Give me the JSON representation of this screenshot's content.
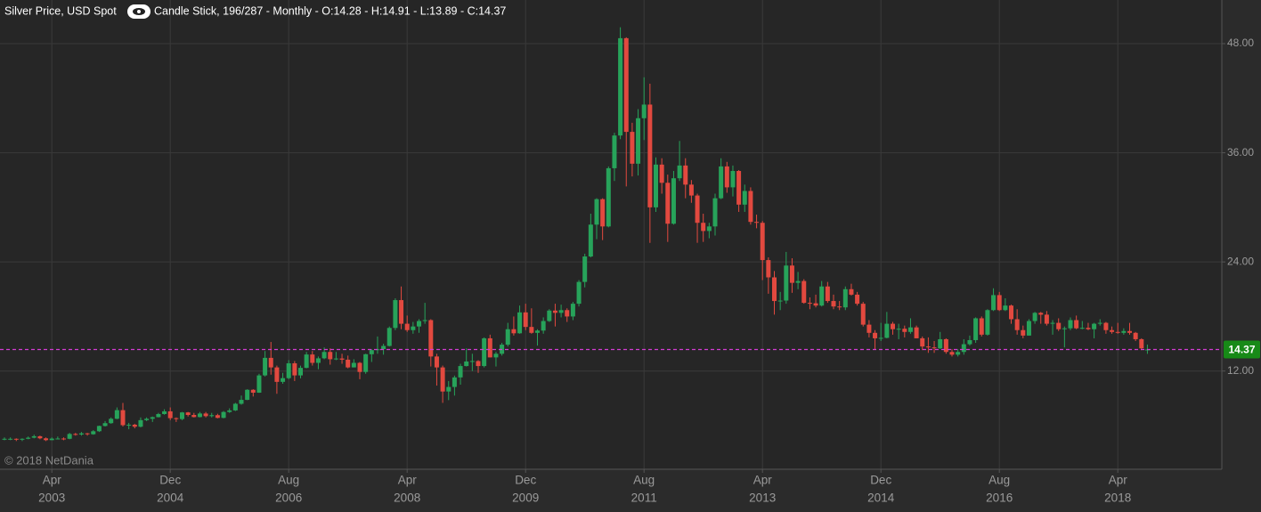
{
  "chart_data": {
    "type": "candlestick",
    "title": "Silver Price, USD Spot",
    "subtitle": "Candle Stick, 196/287 - Monthly - O:14.28 - H:14.91 - L:13.89 - C:14.37",
    "watermark": "© 2018 NetDania",
    "up_color": "#27a35a",
    "down_color": "#e2493f",
    "price_line_color": "#d33cd3",
    "price_label_color": "#178a17",
    "grid": true,
    "ylim": [
      1.2,
      52.8
    ],
    "yticks": [
      {
        "value": 12,
        "label": "12.00"
      },
      {
        "value": 24,
        "label": "24.00"
      },
      {
        "value": 36,
        "label": "36.00"
      },
      {
        "value": 48,
        "label": "48.00"
      }
    ],
    "xticks": [
      {
        "value": "2003-04",
        "label": [
          "Apr",
          "2003"
        ]
      },
      {
        "value": "2004-12",
        "label": [
          "Dec",
          "2004"
        ]
      },
      {
        "value": "2006-08",
        "label": [
          "Aug",
          "2006"
        ]
      },
      {
        "value": "2008-04",
        "label": [
          "Apr",
          "2008"
        ]
      },
      {
        "value": "2009-12",
        "label": [
          "Dec",
          "2009"
        ]
      },
      {
        "value": "2011-08",
        "label": [
          "Aug",
          "2011"
        ]
      },
      {
        "value": "2013-04",
        "label": [
          "Apr",
          "2013"
        ]
      },
      {
        "value": "2014-12",
        "label": [
          "Dec",
          "2014"
        ]
      },
      {
        "value": "2016-08",
        "label": [
          "Aug",
          "2016"
        ]
      },
      {
        "value": "2018-04",
        "label": [
          "Apr",
          "2018"
        ]
      }
    ],
    "x": [
      "2002-08",
      "2002-09",
      "2002-10",
      "2002-11",
      "2002-12",
      "2003-01",
      "2003-02",
      "2003-03",
      "2003-04",
      "2003-05",
      "2003-06",
      "2003-07",
      "2003-08",
      "2003-09",
      "2003-10",
      "2003-11",
      "2003-12",
      "2004-01",
      "2004-02",
      "2004-03",
      "2004-04",
      "2004-05",
      "2004-06",
      "2004-07",
      "2004-08",
      "2004-09",
      "2004-10",
      "2004-11",
      "2004-12",
      "2005-01",
      "2005-02",
      "2005-03",
      "2005-04",
      "2005-05",
      "2005-06",
      "2005-07",
      "2005-08",
      "2005-09",
      "2005-10",
      "2005-11",
      "2005-12",
      "2006-01",
      "2006-02",
      "2006-03",
      "2006-04",
      "2006-05",
      "2006-06",
      "2006-07",
      "2006-08",
      "2006-09",
      "2006-10",
      "2006-11",
      "2006-12",
      "2007-01",
      "2007-02",
      "2007-03",
      "2007-04",
      "2007-05",
      "2007-06",
      "2007-07",
      "2007-08",
      "2007-09",
      "2007-10",
      "2007-11",
      "2007-12",
      "2008-01",
      "2008-02",
      "2008-03",
      "2008-04",
      "2008-05",
      "2008-06",
      "2008-07",
      "2008-08",
      "2008-09",
      "2008-10",
      "2008-11",
      "2008-12",
      "2009-01",
      "2009-02",
      "2009-03",
      "2009-04",
      "2009-05",
      "2009-06",
      "2009-07",
      "2009-08",
      "2009-09",
      "2009-10",
      "2009-11",
      "2009-12",
      "2010-01",
      "2010-02",
      "2010-03",
      "2010-04",
      "2010-05",
      "2010-06",
      "2010-07",
      "2010-08",
      "2010-09",
      "2010-10",
      "2010-11",
      "2010-12",
      "2011-01",
      "2011-02",
      "2011-03",
      "2011-04",
      "2011-05",
      "2011-06",
      "2011-07",
      "2011-08",
      "2011-09",
      "2011-10",
      "2011-11",
      "2011-12",
      "2012-01",
      "2012-02",
      "2012-03",
      "2012-04",
      "2012-05",
      "2012-06",
      "2012-07",
      "2012-08",
      "2012-09",
      "2012-10",
      "2012-11",
      "2012-12",
      "2013-01",
      "2013-02",
      "2013-03",
      "2013-04",
      "2013-05",
      "2013-06",
      "2013-07",
      "2013-08",
      "2013-09",
      "2013-10",
      "2013-11",
      "2013-12",
      "2014-01",
      "2014-02",
      "2014-03",
      "2014-04",
      "2014-05",
      "2014-06",
      "2014-07",
      "2014-08",
      "2014-09",
      "2014-10",
      "2014-11",
      "2014-12",
      "2015-01",
      "2015-02",
      "2015-03",
      "2015-04",
      "2015-05",
      "2015-06",
      "2015-07",
      "2015-08",
      "2015-09",
      "2015-10",
      "2015-11",
      "2015-12",
      "2016-01",
      "2016-02",
      "2016-03",
      "2016-04",
      "2016-05",
      "2016-06",
      "2016-07",
      "2016-08",
      "2016-09",
      "2016-10",
      "2016-11",
      "2016-12",
      "2017-01",
      "2017-02",
      "2017-03",
      "2017-04",
      "2017-05",
      "2017-06",
      "2017-07",
      "2017-08",
      "2017-09",
      "2017-10",
      "2017-11",
      "2017-12",
      "2018-01",
      "2018-02",
      "2018-03",
      "2018-04",
      "2018-05",
      "2018-06",
      "2018-07",
      "2018-08",
      "2018-09"
    ],
    "open": [
      4.5,
      4.55,
      4.55,
      4.45,
      4.55,
      4.67,
      4.83,
      4.6,
      4.4,
      4.57,
      4.58,
      4.55,
      5.08,
      5.02,
      5.15,
      5.05,
      5.38,
      5.96,
      6.27,
      6.75,
      7.7,
      6.05,
      6.1,
      5.88,
      6.6,
      6.75,
      6.93,
      7.27,
      7.57,
      6.82,
      6.72,
      7.45,
      7.17,
      6.94,
      7.33,
      7.04,
      7.15,
      6.85,
      7.5,
      7.67,
      8.4,
      8.83,
      9.94,
      9.62,
      11.52,
      13.45,
      12.4,
      10.81,
      11.22,
      12.85,
      11.52,
      12.35,
      13.82,
      12.9,
      13.4,
      14.1,
      13.3,
      13.38,
      13.25,
      12.4,
      12.9,
      11.9,
      13.85,
      14.3,
      14.4,
      14.76,
      16.74,
      19.8,
      17.2,
      16.5,
      16.9,
      17.5,
      17.6,
      13.6,
      12.4,
      9.75,
      10.25,
      11.3,
      12.55,
      13.05,
      13.1,
      12.55,
      15.6,
      13.5,
      13.9,
      14.9,
      16.6,
      16.15,
      18.45,
      16.85,
      16.2,
      16.45,
      17.5,
      18.65,
      18.4,
      18.7,
      18.0,
      19.4,
      21.8,
      24.6,
      28.1,
      30.9,
      27.9,
      34.3,
      37.9,
      48.6,
      38.3,
      34.8,
      39.8,
      41.3,
      30.0,
      34.7,
      32.7,
      28.2,
      33.2,
      34.6,
      32.5,
      31.3,
      28.3,
      27.4,
      27.9,
      31.0,
      34.5,
      32.2,
      34.0,
      30.3,
      31.8,
      28.4,
      28.3,
      24.2,
      22.3,
      19.7,
      19.75,
      23.6,
      21.7,
      21.9,
      19.5,
      19.45,
      19.2,
      21.3,
      19.7,
      19.1,
      19.0,
      21.0,
      20.4,
      19.4,
      17.1,
      16.2,
      15.6,
      15.65,
      17.2,
      16.6,
      16.65,
      16.3,
      16.8,
      15.6,
      14.7,
      14.6,
      14.5,
      15.5,
      14.1,
      13.8,
      14.1,
      14.95,
      15.4,
      17.8,
      16.0,
      18.7,
      20.35,
      18.7,
      19.2,
      17.7,
      16.5,
      15.9,
      17.5,
      18.4,
      18.2,
      17.2,
      17.3,
      16.6,
      16.7,
      17.6,
      16.7,
      16.75,
      16.6,
      17.2,
      17.3,
      16.5,
      16.3,
      16.2,
      16.4,
      16.2,
      15.5,
      14.28
    ],
    "high": [
      4.7,
      4.7,
      4.6,
      4.6,
      4.8,
      5.0,
      4.9,
      4.7,
      4.7,
      4.8,
      4.7,
      5.2,
      5.2,
      5.3,
      5.2,
      5.5,
      6.0,
      6.5,
      6.9,
      8.0,
      8.5,
      6.3,
      6.2,
      6.9,
      6.9,
      7.0,
      7.4,
      7.8,
      8.0,
      6.9,
      7.5,
      7.5,
      7.4,
      7.5,
      7.5,
      7.4,
      7.3,
      7.6,
      7.9,
      8.5,
      9.3,
      10.0,
      10.0,
      11.7,
      14.2,
      15.2,
      12.6,
      11.8,
      13.2,
      13.1,
      12.6,
      14.1,
      14.2,
      13.6,
      14.6,
      14.5,
      14.1,
      13.9,
      13.7,
      13.3,
      13.0,
      13.9,
      14.4,
      15.8,
      15.0,
      16.9,
      20.0,
      21.3,
      18.1,
      17.4,
      17.7,
      19.5,
      17.7,
      13.9,
      12.6,
      10.9,
      11.5,
      12.8,
      14.5,
      13.9,
      13.2,
      15.7,
      16.0,
      14.1,
      15.1,
      17.3,
      18.0,
      19.2,
      19.4,
      18.9,
      16.6,
      17.9,
      18.8,
      19.4,
      19.3,
      18.9,
      19.6,
      22.0,
      24.9,
      29.3,
      31.0,
      31.0,
      34.5,
      38.2,
      49.8,
      48.7,
      39.3,
      40.8,
      44.3,
      43.6,
      35.5,
      35.4,
      33.6,
      34.0,
      37.3,
      35.4,
      33.0,
      31.5,
      29.3,
      28.3,
      31.5,
      35.4,
      35.0,
      34.6,
      34.1,
      32.5,
      32.2,
      29.2,
      28.5,
      24.5,
      23.0,
      20.7,
      25.1,
      24.4,
      22.9,
      22.1,
      20.1,
      20.4,
      21.9,
      21.8,
      20.4,
      19.7,
      21.3,
      21.6,
      20.7,
      19.6,
      17.6,
      16.5,
      17.3,
      18.5,
      17.4,
      17.2,
      17.0,
      17.8,
      17.0,
      15.8,
      15.7,
      15.3,
      16.3,
      15.6,
      14.4,
      14.4,
      15.5,
      15.9,
      17.9,
      18.0,
      18.8,
      21.1,
      20.7,
      20.0,
      19.3,
      18.8,
      17.0,
      17.7,
      18.5,
      18.5,
      18.6,
      17.6,
      17.8,
      16.9,
      17.9,
      18.1,
      17.5,
      17.3,
      17.3,
      17.7,
      17.4,
      16.9,
      17.3,
      16.7,
      17.3,
      16.3,
      15.6,
      14.91
    ],
    "low": [
      4.4,
      4.4,
      4.3,
      4.3,
      4.5,
      4.6,
      4.5,
      4.3,
      4.4,
      4.5,
      4.4,
      4.5,
      4.9,
      4.9,
      4.9,
      5.0,
      5.3,
      5.9,
      6.2,
      6.7,
      5.9,
      5.6,
      5.7,
      5.8,
      6.5,
      6.4,
      6.9,
      7.2,
      6.6,
      6.4,
      6.6,
      7.0,
      6.9,
      6.9,
      6.9,
      6.9,
      6.8,
      6.8,
      7.4,
      7.6,
      8.3,
      8.8,
      9.2,
      9.6,
      11.4,
      11.6,
      9.5,
      10.6,
      11.1,
      10.9,
      11.2,
      12.3,
      12.6,
      12.2,
      13.3,
      12.7,
      13.2,
      12.8,
      12.3,
      12.4,
      11.1,
      11.7,
      13.0,
      13.9,
      13.8,
      14.7,
      16.5,
      16.6,
      16.3,
      16.1,
      16.2,
      17.2,
      12.5,
      10.4,
      8.5,
      8.8,
      9.3,
      10.5,
      12.5,
      12.0,
      11.8,
      12.4,
      13.5,
      12.5,
      13.7,
      14.7,
      15.9,
      16.1,
      16.5,
      16.1,
      14.8,
      16.1,
      17.4,
      16.9,
      17.9,
      17.4,
      17.6,
      19.1,
      21.2,
      24.5,
      26.5,
      26.4,
      27.8,
      32.9,
      37.5,
      32.3,
      33.4,
      33.5,
      37.4,
      26.1,
      29.5,
      31.5,
      26.2,
      28.1,
      32.9,
      31.0,
      30.5,
      26.1,
      26.2,
      26.6,
      26.9,
      30.9,
      31.6,
      31.2,
      29.5,
      29.5,
      28.1,
      27.7,
      22.0,
      20.5,
      18.2,
      18.7,
      19.4,
      20.6,
      21.0,
      19.4,
      18.8,
      19.0,
      19.1,
      19.5,
      18.8,
      18.7,
      18.7,
      20.3,
      19.2,
      16.9,
      15.7,
      14.4,
      15.3,
      15.6,
      16.0,
      15.5,
      15.7,
      16.1,
      15.6,
      14.3,
      14.0,
      14.0,
      14.4,
      13.9,
      13.6,
      13.6,
      13.8,
      14.8,
      15.1,
      15.8,
      15.9,
      18.6,
      18.6,
      18.6,
      17.2,
      16.0,
      15.6,
      15.9,
      17.2,
      17.2,
      17.0,
      16.0,
      16.4,
      14.6,
      16.5,
      16.6,
      16.6,
      16.5,
      15.6,
      17.0,
      16.1,
      16.1,
      16.1,
      16.0,
      16.0,
      15.3,
      14.3,
      13.89
    ],
    "close": [
      4.55,
      4.55,
      4.45,
      4.55,
      4.67,
      4.83,
      4.6,
      4.4,
      4.57,
      4.58,
      4.55,
      5.08,
      5.02,
      5.15,
      5.05,
      5.38,
      5.96,
      6.27,
      6.75,
      7.7,
      6.05,
      6.1,
      5.88,
      6.6,
      6.75,
      6.93,
      7.27,
      7.57,
      6.82,
      6.72,
      7.45,
      7.17,
      6.94,
      7.33,
      7.04,
      7.15,
      6.85,
      7.5,
      7.67,
      8.4,
      8.83,
      9.94,
      9.62,
      11.52,
      13.45,
      12.4,
      10.81,
      11.22,
      12.85,
      11.52,
      12.35,
      13.82,
      12.9,
      13.4,
      14.1,
      13.3,
      13.38,
      13.25,
      12.4,
      12.9,
      11.9,
      13.85,
      14.3,
      14.4,
      14.76,
      16.74,
      19.8,
      17.2,
      16.5,
      16.9,
      17.5,
      17.6,
      13.6,
      12.4,
      9.75,
      10.25,
      11.3,
      12.55,
      13.05,
      13.1,
      12.55,
      15.6,
      13.5,
      13.9,
      14.9,
      16.6,
      16.15,
      18.45,
      16.85,
      16.2,
      16.45,
      17.5,
      18.65,
      18.4,
      18.7,
      18.0,
      19.4,
      21.8,
      24.6,
      28.1,
      30.9,
      27.9,
      34.3,
      37.9,
      48.6,
      38.3,
      34.8,
      39.8,
      41.3,
      30.0,
      34.7,
      32.7,
      28.2,
      33.2,
      34.6,
      32.5,
      31.3,
      28.3,
      27.4,
      27.9,
      31.0,
      34.5,
      32.2,
      34.0,
      30.3,
      31.8,
      28.4,
      28.3,
      24.2,
      22.3,
      19.7,
      19.75,
      23.6,
      21.7,
      21.9,
      19.5,
      19.45,
      19.2,
      21.3,
      19.7,
      19.1,
      19.0,
      21.0,
      20.4,
      19.4,
      17.1,
      16.2,
      15.6,
      15.65,
      17.2,
      16.6,
      16.65,
      16.3,
      16.8,
      15.6,
      14.7,
      14.6,
      14.5,
      15.5,
      14.1,
      13.8,
      14.1,
      14.95,
      15.4,
      17.8,
      16.0,
      18.7,
      20.35,
      18.7,
      19.2,
      17.7,
      16.5,
      15.9,
      17.5,
      18.4,
      18.2,
      17.2,
      17.3,
      16.6,
      16.7,
      17.6,
      16.7,
      16.75,
      16.6,
      17.2,
      17.3,
      16.5,
      16.3,
      16.2,
      16.4,
      16.2,
      15.5,
      14.5,
      14.37
    ]
  }
}
